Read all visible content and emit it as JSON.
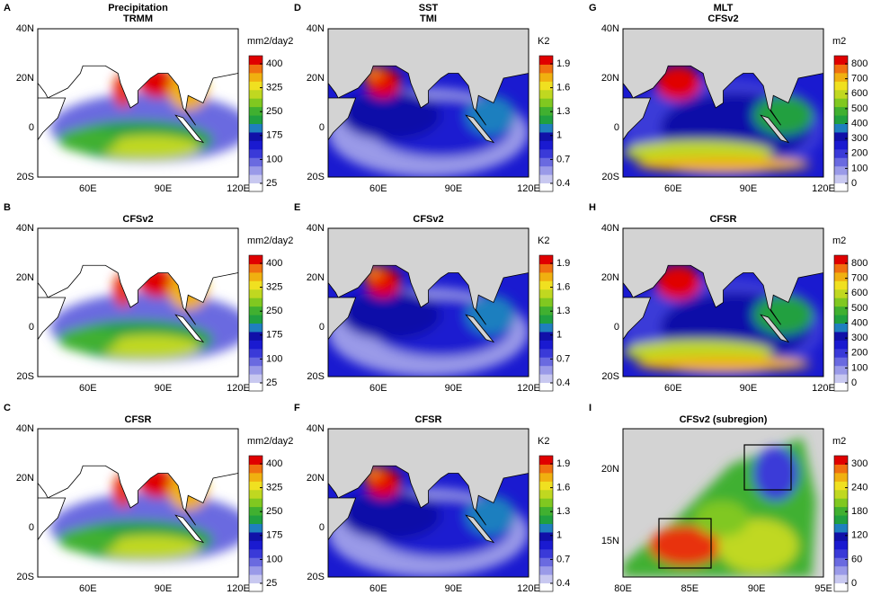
{
  "colormap": [
    "#ffffff",
    "#c8c8f0",
    "#9a9ae8",
    "#6a6ae0",
    "#3a3ad8",
    "#1a1ad0",
    "#1010a8",
    "#1f7fbf",
    "#20a040",
    "#40b030",
    "#80c820",
    "#c0d820",
    "#f0e020",
    "#f0b010",
    "#f07010",
    "#e83010",
    "#e00000"
  ],
  "panels": [
    {
      "letter": "A",
      "titles": [
        "Precipitation",
        "TRMM"
      ],
      "unit": "mm2/day2",
      "cbar_ticks": [
        400,
        325,
        250,
        175,
        100,
        25
      ],
      "lat_labels": [
        "40N",
        "20N",
        "0",
        "20S"
      ],
      "lon_labels": [
        "60E",
        "90E",
        "120E"
      ]
    },
    {
      "letter": "B",
      "titles": [
        "CFSv2"
      ],
      "unit": "mm2/day2",
      "cbar_ticks": [
        400,
        325,
        250,
        175,
        100,
        25
      ],
      "lat_labels": [
        "40N",
        "20N",
        "0",
        "20S"
      ],
      "lon_labels": [
        "60E",
        "90E",
        "120E"
      ]
    },
    {
      "letter": "C",
      "titles": [
        "CFSR"
      ],
      "unit": "mm2/day2",
      "cbar_ticks": [
        400,
        325,
        250,
        175,
        100,
        25
      ],
      "lat_labels": [
        "40N",
        "20N",
        "0",
        "20S"
      ],
      "lon_labels": [
        "60E",
        "90E",
        "120E"
      ]
    },
    {
      "letter": "D",
      "titles": [
        "SST",
        "TMI"
      ],
      "unit": "K2",
      "cbar_ticks": [
        1.9,
        1.6,
        1.3,
        1,
        0.7,
        0.4
      ],
      "lat_labels": [
        "40N",
        "20N",
        "0",
        "20S"
      ],
      "lon_labels": [
        "60E",
        "90E",
        "120E"
      ]
    },
    {
      "letter": "E",
      "titles": [
        "CFSv2"
      ],
      "unit": "K2",
      "cbar_ticks": [
        1.9,
        1.6,
        1.3,
        1,
        0.7,
        0.4
      ],
      "lat_labels": [
        "40N",
        "20N",
        "0",
        "20S"
      ],
      "lon_labels": [
        "60E",
        "90E",
        "120E"
      ]
    },
    {
      "letter": "F",
      "titles": [
        "CFSR"
      ],
      "unit": "K2",
      "cbar_ticks": [
        1.9,
        1.6,
        1.3,
        1,
        0.7,
        0.4
      ],
      "lat_labels": [
        "40N",
        "20N",
        "0",
        "20S"
      ],
      "lon_labels": [
        "60E",
        "90E",
        "120E"
      ]
    },
    {
      "letter": "G",
      "titles": [
        "MLT",
        "CFSv2"
      ],
      "unit": "m2",
      "cbar_ticks": [
        800,
        700,
        600,
        500,
        400,
        300,
        200,
        100,
        0
      ],
      "lat_labels": [
        "40N",
        "20N",
        "0",
        "20S"
      ],
      "lon_labels": [
        "60E",
        "90E",
        "120E"
      ]
    },
    {
      "letter": "H",
      "titles": [
        "CFSR"
      ],
      "unit": "m2",
      "cbar_ticks": [
        800,
        700,
        600,
        500,
        400,
        300,
        200,
        100,
        0
      ],
      "lat_labels": [
        "40N",
        "20N",
        "0",
        "20S"
      ],
      "lon_labels": [
        "60E",
        "90E",
        "120E"
      ]
    },
    {
      "letter": "I",
      "titles": [
        "CFSv2 (subregion)"
      ],
      "unit": "m2",
      "cbar_ticks": [
        300,
        240,
        180,
        120,
        60,
        0
      ],
      "lat_labels": [
        "20N",
        "15N"
      ],
      "lon_labels": [
        "80E",
        "85E",
        "90E",
        "95E"
      ]
    }
  ]
}
